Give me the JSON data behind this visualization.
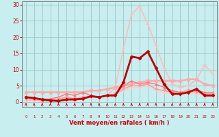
{
  "x": [
    0,
    1,
    2,
    3,
    4,
    5,
    6,
    7,
    8,
    9,
    10,
    11,
    12,
    13,
    14,
    15,
    16,
    17,
    18,
    19,
    20,
    21,
    22,
    23
  ],
  "series": [
    {
      "name": "main_dark",
      "values": [
        1.5,
        1.2,
        0.8,
        0.5,
        0.3,
        0.8,
        0.8,
        1.0,
        1.8,
        1.5,
        2.0,
        2.0,
        6.0,
        14.0,
        13.5,
        15.5,
        10.5,
        5.5,
        2.5,
        2.5,
        3.0,
        4.0,
        2.0,
        2.0
      ],
      "color": "#bb0000",
      "lw": 2.0,
      "marker": "D",
      "ms": 2.5,
      "zorder": 5
    },
    {
      "name": "flat_pink",
      "values": [
        3.0,
        3.0,
        3.0,
        3.0,
        3.0,
        3.0,
        3.0,
        3.0,
        3.5,
        3.5,
        4.0,
        4.5,
        5.0,
        5.5,
        6.0,
        6.5,
        6.5,
        6.5,
        6.5,
        6.5,
        7.0,
        7.0,
        5.5,
        5.0
      ],
      "color": "#ffaaaa",
      "lw": 1.8,
      "marker": "s",
      "ms": 2.5,
      "zorder": 3
    },
    {
      "name": "medium_pink",
      "values": [
        1.5,
        1.0,
        0.5,
        1.0,
        1.5,
        2.5,
        2.0,
        3.0,
        2.0,
        1.5,
        2.0,
        2.5,
        5.0,
        6.5,
        5.5,
        6.0,
        5.5,
        4.5,
        3.5,
        3.0,
        3.5,
        3.5,
        3.0,
        3.0
      ],
      "color": "#ff7777",
      "lw": 1.0,
      "marker": "^",
      "ms": 2.5,
      "zorder": 3
    },
    {
      "name": "lower_pink",
      "values": [
        1.0,
        0.8,
        0.5,
        0.5,
        1.0,
        1.5,
        1.0,
        1.5,
        1.5,
        1.5,
        2.0,
        2.5,
        4.0,
        5.0,
        5.0,
        5.5,
        4.0,
        3.5,
        3.0,
        3.0,
        3.5,
        3.0,
        2.5,
        2.5
      ],
      "color": "#ff9999",
      "lw": 1.0,
      "marker": "v",
      "ms": 2.5,
      "zorder": 3
    },
    {
      "name": "light_pink",
      "values": [
        1.0,
        0.8,
        0.5,
        0.5,
        1.0,
        1.5,
        1.0,
        1.0,
        1.5,
        1.5,
        2.0,
        2.5,
        3.5,
        4.5,
        4.5,
        5.0,
        3.5,
        3.0,
        2.5,
        2.5,
        3.0,
        2.5,
        2.0,
        2.0
      ],
      "color": "#ffcccc",
      "lw": 1.0,
      "marker": "o",
      "ms": 2,
      "zorder": 2
    },
    {
      "name": "peak_line",
      "values": [
        0.5,
        0.5,
        0.3,
        0.3,
        0.3,
        0.5,
        0.5,
        1.0,
        1.5,
        1.5,
        2.0,
        4.5,
        16.5,
        27.0,
        29.5,
        24.0,
        17.5,
        10.5,
        5.5,
        4.5,
        5.0,
        7.0,
        11.5,
        8.5
      ],
      "color": "#ffbbbb",
      "lw": 1.2,
      "marker": "+",
      "ms": 4,
      "zorder": 2
    }
  ],
  "xlabel": "Vent moyen/en rafales ( km/h )",
  "xlim": [
    -0.5,
    23.5
  ],
  "ylim": [
    -1.5,
    31
  ],
  "yticks": [
    0,
    5,
    10,
    15,
    20,
    25,
    30
  ],
  "xticks": [
    0,
    1,
    2,
    3,
    4,
    5,
    6,
    7,
    8,
    9,
    10,
    11,
    12,
    13,
    14,
    15,
    16,
    17,
    18,
    19,
    20,
    21,
    22,
    23
  ],
  "bg_color": "#c8eef0",
  "grid_color": "#a0ccc8",
  "tick_color": "#cc0000",
  "label_color": "#cc0000",
  "arrow_color": "#dd0000"
}
